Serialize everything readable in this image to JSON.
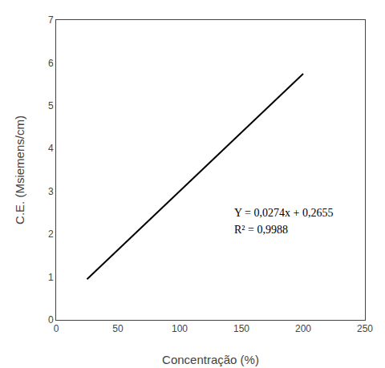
{
  "chart_data": {
    "type": "line",
    "xlabel": "Concentração (%)",
    "ylabel": "C.E. (Msiemens/cm)",
    "x": [
      25,
      200
    ],
    "values": [
      0.9505,
      5.7455
    ],
    "color": "#000000",
    "xlim": [
      0,
      250
    ],
    "ylim": [
      0,
      7
    ],
    "xticks": [
      0,
      50,
      100,
      150,
      200,
      250
    ],
    "yticks": [
      0,
      1,
      2,
      3,
      4,
      5,
      6,
      7
    ],
    "grid": false,
    "annotations": [
      "Y = 0,0274x + 0,2655",
      "R² = 0,9988"
    ]
  }
}
